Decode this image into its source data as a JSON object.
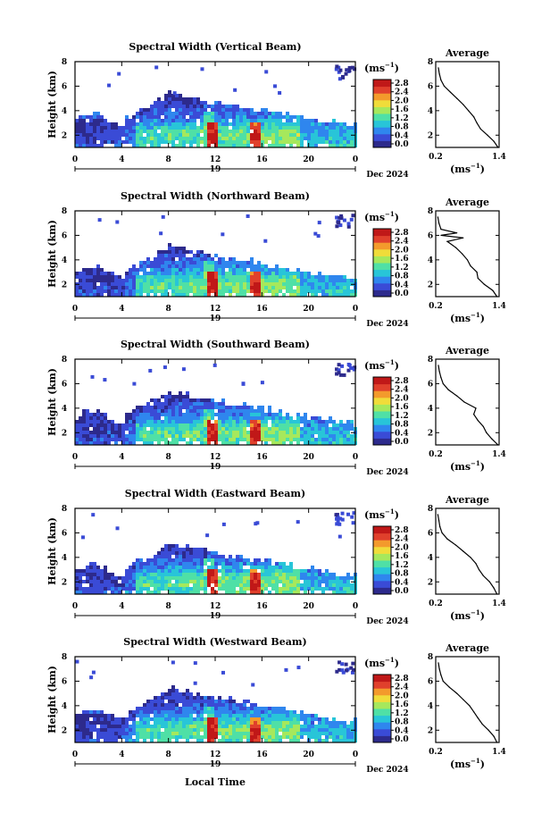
{
  "figure": {
    "xlabel": "Local Time",
    "date_label": "Dec 2024",
    "day_label": "19",
    "unit_label": "(ms",
    "unit_exp": "−1",
    "avg_title": "Average",
    "height_label": "Height (km)",
    "colorbar_ticks": [
      "2.8",
      "2.4",
      "2.0",
      "1.6",
      "1.2",
      "0.8",
      "0.4",
      "0.0"
    ],
    "colors": [
      "#2d2a8c",
      "#3a4bd6",
      "#2f86ee",
      "#28c5d8",
      "#4fe0a6",
      "#a6e85c",
      "#f0dc3a",
      "#f39a2c",
      "#e0402c",
      "#c01818"
    ]
  },
  "chart_data": [
    {
      "type": "heatmap",
      "title": "Spectral Width (Vertical Beam)",
      "x_range": [
        0,
        24
      ],
      "x_ticks": [
        "0",
        "4",
        "8",
        "12",
        "16",
        "20",
        "0"
      ],
      "y_range": [
        1,
        8
      ],
      "y_ticks": [
        "2",
        "4",
        "6",
        "8"
      ],
      "color_range": [
        0,
        3.0
      ],
      "average_profile": {
        "x_range": [
          0.2,
          1.4
        ],
        "x_ticks": [
          "0.2",
          "1.4"
        ],
        "y_ticks": [
          "2",
          "4",
          "6",
          "8"
        ],
        "height": [
          1.0,
          1.5,
          2.0,
          2.5,
          3.0,
          3.5,
          4.0,
          4.5,
          5.0,
          5.5,
          6.0,
          6.5,
          7.0,
          7.5
        ],
        "width": [
          1.38,
          1.3,
          1.18,
          1.05,
          0.98,
          0.92,
          0.82,
          0.72,
          0.6,
          0.48,
          0.36,
          0.3,
          0.27,
          0.25
        ]
      }
    },
    {
      "type": "heatmap",
      "title": "Spectral Width (Northward Beam)",
      "x_range": [
        0,
        24
      ],
      "x_ticks": [
        "0",
        "4",
        "8",
        "12",
        "16",
        "20",
        "0"
      ],
      "y_range": [
        1,
        8
      ],
      "y_ticks": [
        "2",
        "4",
        "6",
        "8"
      ],
      "color_range": [
        0,
        3.0
      ],
      "average_profile": {
        "x_range": [
          0.2,
          1.4
        ],
        "x_ticks": [
          "0.2",
          "1.4"
        ],
        "y_ticks": [
          "2",
          "4",
          "6",
          "8"
        ],
        "height": [
          1.0,
          1.5,
          2.0,
          2.5,
          3.0,
          3.5,
          4.0,
          4.5,
          5.0,
          5.5,
          5.8,
          6.0,
          6.2,
          6.5,
          7.0,
          7.5
        ],
        "width": [
          1.36,
          1.28,
          1.12,
          1.0,
          0.98,
          0.86,
          0.8,
          0.7,
          0.58,
          0.42,
          0.72,
          0.3,
          0.6,
          0.3,
          0.26,
          0.24
        ]
      }
    },
    {
      "type": "heatmap",
      "title": "Spectral Width (Southward Beam)",
      "x_range": [
        0,
        24
      ],
      "x_ticks": [
        "0",
        "4",
        "8",
        "12",
        "16",
        "20",
        "0"
      ],
      "y_range": [
        1,
        8
      ],
      "y_ticks": [
        "2",
        "4",
        "6",
        "8"
      ],
      "color_range": [
        0,
        3.0
      ],
      "average_profile": {
        "x_range": [
          0.2,
          1.4
        ],
        "x_ticks": [
          "0.2",
          "1.4"
        ],
        "y_ticks": [
          "2",
          "4",
          "6",
          "8"
        ],
        "height": [
          1.0,
          1.5,
          2.0,
          2.5,
          3.0,
          3.5,
          4.0,
          4.5,
          5.0,
          5.5,
          6.0,
          6.5,
          7.0,
          7.5
        ],
        "width": [
          1.38,
          1.26,
          1.16,
          1.1,
          1.0,
          0.92,
          0.96,
          0.74,
          0.6,
          0.44,
          0.34,
          0.3,
          0.27,
          0.25
        ]
      }
    },
    {
      "type": "heatmap",
      "title": "Spectral Width (Eastward Beam)",
      "x_range": [
        0,
        24
      ],
      "x_ticks": [
        "0",
        "4",
        "8",
        "12",
        "16",
        "20",
        "0"
      ],
      "y_range": [
        1,
        8
      ],
      "y_ticks": [
        "2",
        "4",
        "6",
        "8"
      ],
      "color_range": [
        0,
        3.0
      ],
      "average_profile": {
        "x_range": [
          0.2,
          1.4
        ],
        "x_ticks": [
          "0.2",
          "1.4"
        ],
        "y_ticks": [
          "2",
          "4",
          "6",
          "8"
        ],
        "height": [
          1.0,
          1.5,
          2.0,
          2.5,
          3.0,
          3.5,
          4.0,
          4.5,
          5.0,
          5.5,
          6.0,
          6.5,
          7.0,
          7.5
        ],
        "width": [
          1.36,
          1.3,
          1.22,
          1.1,
          1.02,
          0.96,
          0.86,
          0.72,
          0.58,
          0.42,
          0.32,
          0.28,
          0.26,
          0.24
        ]
      }
    },
    {
      "type": "heatmap",
      "title": "Spectral Width (Westward Beam)",
      "x_range": [
        0,
        24
      ],
      "x_ticks": [
        "0",
        "4",
        "8",
        "12",
        "16",
        "20",
        "0"
      ],
      "y_range": [
        1,
        8
      ],
      "y_ticks": [
        "2",
        "4",
        "6",
        "8"
      ],
      "color_range": [
        0,
        3.0
      ],
      "average_profile": {
        "x_range": [
          0.2,
          1.4
        ],
        "x_ticks": [
          "0.2",
          "1.4"
        ],
        "y_ticks": [
          "2",
          "4",
          "6",
          "8"
        ],
        "height": [
          1.0,
          1.5,
          2.0,
          2.5,
          3.0,
          3.5,
          4.0,
          4.5,
          5.0,
          5.5,
          6.0,
          6.5,
          7.0,
          7.5
        ],
        "width": [
          1.36,
          1.3,
          1.2,
          1.08,
          1.0,
          0.92,
          0.84,
          0.72,
          0.6,
          0.46,
          0.34,
          0.3,
          0.27,
          0.25
        ]
      }
    }
  ]
}
